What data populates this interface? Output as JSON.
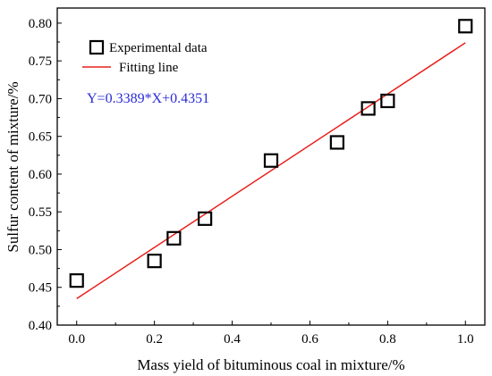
{
  "chart_data": {
    "type": "scatter",
    "xlabel": "Mass yield of bituminous coal in mixture/%",
    "ylabel": "Sulfur content of mixture/%",
    "xlim": [
      -0.05,
      1.05
    ],
    "ylim": [
      0.4,
      0.82
    ],
    "x_ticks": [
      "0.0",
      "0.2",
      "0.4",
      "0.6",
      "0.8",
      "1.0"
    ],
    "y_ticks": [
      "0.40",
      "0.45",
      "0.50",
      "0.55",
      "0.60",
      "0.65",
      "0.70",
      "0.75",
      "0.80"
    ],
    "series": [
      {
        "name": "Experimental data",
        "kind": "scatter",
        "marker": "open-square",
        "color": "#000000",
        "x": [
          0.0,
          0.2,
          0.25,
          0.33,
          0.5,
          0.67,
          0.75,
          0.8,
          1.0
        ],
        "y": [
          0.459,
          0.485,
          0.515,
          0.541,
          0.618,
          0.642,
          0.687,
          0.697,
          0.796
        ]
      },
      {
        "name": "Fitting line",
        "kind": "line",
        "color": "#e8201b",
        "slope": 0.3389,
        "intercept": 0.4351,
        "x_range": [
          0.0,
          1.0
        ]
      }
    ],
    "annotation": {
      "text": "Y=0.3389*X+0.4351",
      "color": "#2b2bd9"
    },
    "legend_position": "top-left",
    "grid": false
  }
}
